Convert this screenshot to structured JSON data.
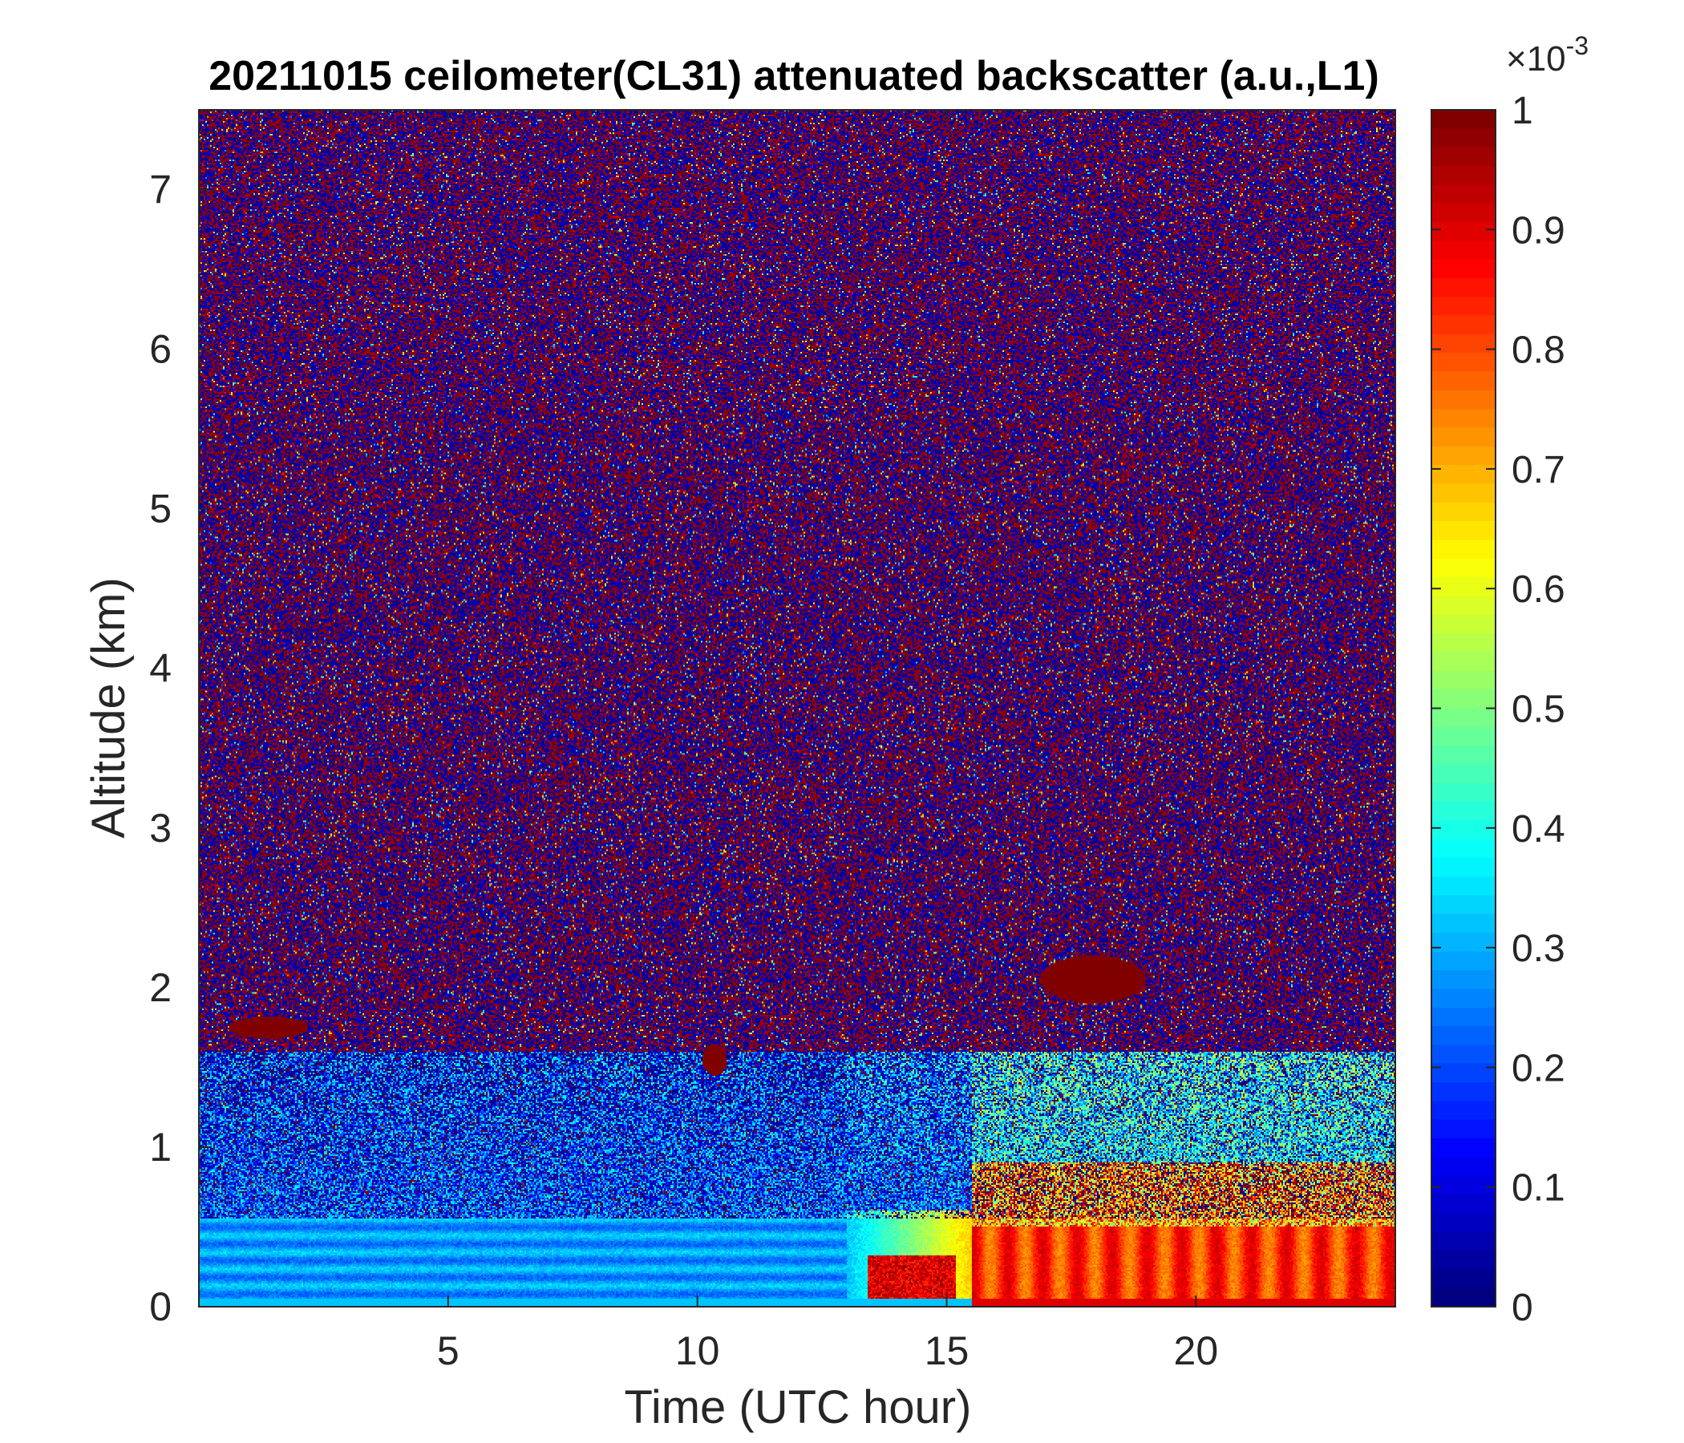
{
  "chart_data": {
    "type": "heatmap",
    "title": "20211015 ceilometer(CL31) attenuated backscatter (a.u.,L1)",
    "xlabel": "Time (UTC hour)",
    "ylabel": "Altitude (km)",
    "xlim": [
      0,
      24
    ],
    "ylim": [
      0,
      7.5
    ],
    "xticks": [
      5,
      10,
      15,
      20
    ],
    "xtick_labels": [
      "5",
      "10",
      "15",
      "20"
    ],
    "yticks": [
      0,
      1,
      2,
      3,
      4,
      5,
      6,
      7
    ],
    "ytick_labels": [
      "0",
      "1",
      "2",
      "3",
      "4",
      "5",
      "6",
      "7"
    ],
    "colorbar": {
      "colormap": "jet",
      "limits": [
        0,
        1
      ],
      "ticks": [
        0,
        0.1,
        0.2,
        0.3,
        0.4,
        0.5,
        0.6,
        0.7,
        0.8,
        0.9,
        1
      ],
      "tick_labels": [
        "0",
        "0.1",
        "0.2",
        "0.3",
        "0.4",
        "0.5",
        "0.6",
        "0.7",
        "0.8",
        "0.9",
        "1"
      ],
      "exponent_label": "×10",
      "exponent_power": "-3"
    },
    "features": [
      {
        "time_hour": [
          0.6,
          2.2
        ],
        "altitude_km": [
          1.68,
          1.82
        ],
        "value": 1.0
      },
      {
        "time_hour": [
          10.1,
          10.6
        ],
        "altitude_km": [
          1.45,
          1.65
        ],
        "value": 1.0
      },
      {
        "time_hour": [
          16.9,
          19.0
        ],
        "altitude_km": [
          1.9,
          2.2
        ],
        "value": 1.0
      },
      {
        "time_hour": [
          13.3,
          15.2
        ],
        "altitude_km": [
          0.0,
          0.35
        ],
        "value": 0.95
      },
      {
        "time_hour": [
          15.5,
          24.0
        ],
        "altitude_km": [
          0.0,
          0.9
        ],
        "value": 0.85
      },
      {
        "time_hour": [
          0.0,
          13.0
        ],
        "altitude_km": [
          0.0,
          0.6
        ],
        "value": 0.3
      }
    ]
  }
}
